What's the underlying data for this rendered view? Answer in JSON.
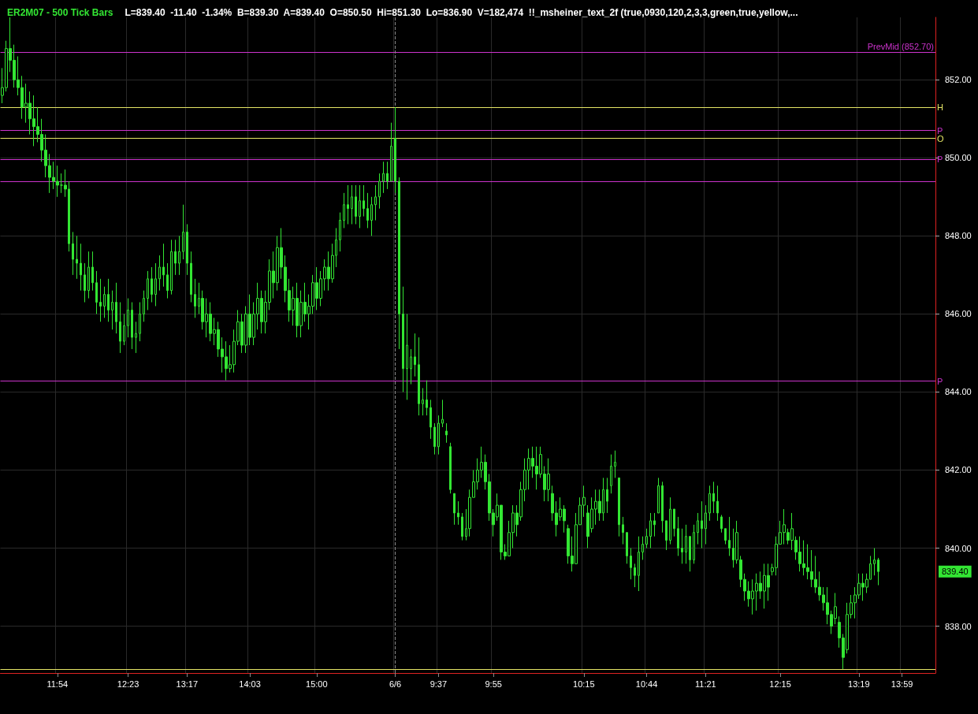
{
  "chart_data": {
    "type": "candlestick",
    "title": "ER2M07 - 500 Tick Bars",
    "subtitle": "L=839.40  -11.40  -1.34%  B=839.30  A=839.40  O=850.50  Hi=851.30  Lo=836.90  V=182,474  !!_msheiner_text_2f (true,0930,120,2,3,3,green,true,yellow,...",
    "color": "#33e633",
    "grid": true,
    "categories": [
      null,
      null,
      null,
      null,
      null,
      null,
      null,
      null,
      null,
      null,
      null,
      null,
      null,
      null,
      "11:54",
      null,
      null,
      null,
      null,
      null,
      null,
      null,
      null,
      null,
      null,
      null,
      null,
      null,
      null,
      null,
      null,
      null,
      "12:23",
      null,
      null,
      null,
      null,
      null,
      null,
      null,
      null,
      null,
      null,
      null,
      null,
      null,
      null,
      "13:17",
      null,
      null,
      null,
      null,
      null,
      null,
      null,
      null,
      null,
      null,
      null,
      null,
      null,
      null,
      null,
      "14:03",
      null,
      null,
      null,
      null,
      null,
      null,
      null,
      null,
      null,
      null,
      null,
      null,
      null,
      null,
      null,
      null,
      "15:00",
      null,
      null,
      null,
      null,
      null,
      null,
      null,
      null,
      null,
      null,
      null,
      null,
      null,
      null,
      null,
      null,
      null,
      null,
      null,
      "6/6",
      null,
      null,
      null,
      null,
      null,
      null,
      null,
      null,
      null,
      null,
      "9:37",
      null,
      null,
      null,
      null,
      null,
      null,
      null,
      null,
      null,
      null,
      null,
      null,
      null,
      "9:55",
      null,
      null,
      null,
      null,
      null,
      null,
      null,
      null,
      null,
      null,
      null,
      null,
      null,
      null,
      null,
      null,
      null,
      null,
      null,
      null,
      null,
      null,
      "10:15",
      null,
      null,
      null,
      null,
      null,
      null,
      null,
      null,
      null,
      null,
      null,
      null,
      null,
      null,
      null,
      "10:44",
      null,
      null,
      null,
      null,
      null,
      null,
      null,
      null,
      null,
      null,
      null,
      null,
      null,
      null,
      "11:21",
      null,
      null,
      null,
      null,
      null,
      null,
      null,
      null,
      null,
      null,
      null,
      null,
      null,
      null,
      null,
      null,
      null,
      null,
      "12:15",
      null,
      null,
      null,
      null,
      null,
      null,
      null,
      null,
      null,
      null,
      null,
      null,
      null,
      null,
      null,
      null,
      null,
      null,
      null,
      "13:19",
      null,
      null,
      null,
      null,
      null,
      null,
      null,
      null,
      null,
      null,
      "13:59",
      null,
      null,
      null,
      null,
      null,
      null,
      null,
      null
    ],
    "ohlc": [
      [
        851.6,
        852.3,
        851.4,
        851.8
      ],
      [
        851.8,
        853.0,
        851.7,
        852.8
      ],
      [
        852.8,
        853.6,
        852.2,
        852.5
      ],
      [
        852.5,
        852.9,
        851.8,
        852.0
      ],
      [
        852.0,
        852.6,
        851.6,
        851.8
      ],
      [
        851.8,
        852.1,
        851.0,
        851.3
      ],
      [
        851.3,
        851.9,
        850.9,
        851.4
      ],
      [
        851.4,
        851.7,
        850.6,
        851.0
      ],
      [
        851.0,
        851.6,
        850.3,
        850.8
      ],
      [
        850.8,
        851.3,
        850.4,
        850.6
      ],
      [
        850.6,
        851.0,
        849.9,
        850.2
      ],
      [
        850.2,
        850.6,
        849.5,
        849.8
      ],
      [
        849.8,
        850.1,
        849.1,
        849.5
      ],
      [
        849.5,
        849.9,
        849.2,
        849.4
      ],
      [
        849.4,
        849.8,
        849.0,
        849.3
      ],
      [
        849.3,
        849.6,
        849.1,
        849.3
      ],
      [
        849.3,
        849.7,
        849.0,
        849.2
      ],
      [
        849.2,
        849.4,
        847.6,
        847.8
      ],
      [
        847.8,
        848.1,
        847.0,
        847.4
      ],
      [
        847.4,
        848.0,
        846.9,
        847.3
      ],
      [
        847.3,
        847.8,
        846.6,
        847.0
      ],
      [
        847.0,
        847.3,
        846.3,
        846.6
      ],
      [
        846.6,
        847.6,
        846.4,
        847.2
      ],
      [
        847.2,
        847.6,
        846.6,
        846.8
      ],
      [
        846.8,
        847.1,
        846.0,
        846.3
      ],
      [
        846.3,
        846.9,
        845.8,
        846.2
      ],
      [
        846.2,
        846.7,
        845.9,
        846.5
      ],
      [
        846.5,
        846.9,
        845.8,
        846.1
      ],
      [
        846.1,
        846.6,
        845.6,
        846.3
      ],
      [
        846.3,
        846.8,
        845.5,
        845.8
      ],
      [
        845.8,
        846.3,
        845.0,
        845.3
      ],
      [
        845.3,
        846.0,
        845.2,
        845.7
      ],
      [
        845.7,
        846.4,
        845.4,
        846.1
      ],
      [
        846.1,
        846.3,
        845.1,
        845.4
      ],
      [
        845.4,
        845.8,
        845.0,
        845.5
      ],
      [
        845.5,
        846.3,
        845.3,
        846.0
      ],
      [
        846.0,
        846.6,
        845.8,
        846.4
      ],
      [
        846.4,
        847.1,
        846.1,
        846.9
      ],
      [
        846.9,
        847.2,
        846.3,
        846.5
      ],
      [
        846.5,
        847.3,
        846.2,
        846.9
      ],
      [
        846.9,
        847.5,
        846.6,
        847.2
      ],
      [
        847.2,
        847.8,
        846.7,
        847.0
      ],
      [
        847.0,
        847.3,
        846.4,
        846.6
      ],
      [
        846.6,
        847.9,
        846.5,
        847.6
      ],
      [
        847.6,
        847.9,
        847.0,
        847.3
      ],
      [
        847.3,
        848.0,
        847.0,
        847.6
      ],
      [
        847.6,
        848.8,
        847.4,
        848.1
      ],
      [
        848.1,
        848.3,
        847.0,
        847.3
      ],
      [
        847.3,
        847.6,
        846.3,
        846.5
      ],
      [
        846.5,
        846.9,
        845.9,
        846.2
      ],
      [
        846.2,
        846.8,
        846.0,
        846.4
      ],
      [
        846.4,
        846.6,
        845.6,
        845.8
      ],
      [
        845.8,
        846.4,
        845.4,
        846.0
      ],
      [
        846.0,
        846.3,
        845.3,
        845.5
      ],
      [
        845.5,
        845.9,
        845.2,
        845.6
      ],
      [
        845.6,
        845.8,
        844.9,
        845.1
      ],
      [
        845.1,
        845.4,
        844.5,
        844.9
      ],
      [
        844.9,
        845.3,
        844.3,
        844.6
      ],
      [
        844.6,
        845.2,
        844.5,
        844.7
      ],
      [
        844.7,
        845.6,
        844.5,
        845.3
      ],
      [
        845.3,
        846.1,
        845.2,
        845.8
      ],
      [
        845.8,
        846.0,
        845.0,
        845.2
      ],
      [
        845.2,
        846.2,
        845.0,
        846.0
      ],
      [
        846.0,
        846.5,
        845.2,
        845.4
      ],
      [
        845.4,
        846.3,
        845.2,
        846.0
      ],
      [
        846.0,
        846.8,
        845.6,
        846.4
      ],
      [
        846.4,
        846.6,
        845.5,
        845.8
      ],
      [
        845.8,
        846.6,
        845.5,
        846.3
      ],
      [
        846.3,
        847.4,
        846.1,
        847.1
      ],
      [
        847.1,
        847.6,
        846.4,
        846.8
      ],
      [
        846.8,
        848.0,
        846.6,
        847.7
      ],
      [
        847.7,
        848.2,
        846.9,
        847.2
      ],
      [
        847.2,
        847.5,
        846.3,
        846.6
      ],
      [
        846.6,
        846.9,
        845.8,
        846.1
      ],
      [
        846.1,
        846.7,
        845.7,
        846.4
      ],
      [
        846.4,
        846.8,
        845.4,
        845.7
      ],
      [
        845.7,
        846.6,
        845.4,
        846.3
      ],
      [
        846.3,
        846.8,
        845.8,
        846.0
      ],
      [
        846.0,
        846.5,
        845.6,
        846.2
      ],
      [
        846.2,
        847.0,
        846.0,
        846.8
      ],
      [
        846.8,
        847.2,
        846.1,
        846.4
      ],
      [
        846.4,
        847.1,
        846.2,
        846.9
      ],
      [
        846.9,
        847.4,
        846.6,
        847.2
      ],
      [
        847.2,
        847.6,
        846.6,
        846.9
      ],
      [
        846.9,
        847.8,
        846.8,
        847.5
      ],
      [
        847.5,
        848.2,
        847.2,
        847.9
      ],
      [
        847.9,
        848.6,
        847.6,
        848.4
      ],
      [
        848.4,
        849.1,
        848.2,
        848.8
      ],
      [
        848.8,
        849.3,
        848.3,
        848.7
      ],
      [
        848.7,
        849.3,
        848.3,
        849.0
      ],
      [
        849.0,
        849.3,
        848.3,
        848.5
      ],
      [
        848.5,
        849.3,
        848.2,
        848.9
      ],
      [
        848.9,
        849.3,
        848.5,
        848.7
      ],
      [
        848.7,
        849.1,
        848.2,
        848.4
      ],
      [
        848.4,
        849.0,
        848.0,
        848.8
      ],
      [
        848.8,
        849.3,
        848.4,
        849.0
      ],
      [
        849.0,
        849.6,
        848.7,
        849.4
      ],
      [
        849.4,
        849.9,
        849.1,
        849.6
      ],
      [
        849.6,
        849.9,
        849.2,
        849.4
      ],
      [
        849.4,
        850.9,
        849.4,
        850.3
      ],
      [
        850.5,
        851.3,
        849.1,
        849.4
      ],
      [
        849.4,
        849.5,
        845.1,
        846.0
      ],
      [
        846.0,
        846.7,
        844.0,
        844.6
      ],
      [
        844.6,
        846.0,
        843.8,
        845.2
      ],
      [
        844.6,
        845.1,
        844.2,
        844.9
      ],
      [
        844.9,
        845.5,
        844.4,
        844.7
      ],
      [
        844.7,
        845.4,
        843.4,
        843.7
      ],
      [
        843.7,
        844.1,
        843.4,
        843.8
      ],
      [
        843.8,
        844.3,
        843.4,
        843.6
      ],
      [
        843.6,
        843.8,
        842.8,
        843.1
      ],
      [
        843.1,
        843.2,
        842.4,
        842.6
      ],
      [
        842.6,
        843.4,
        842.4,
        843.2
      ],
      [
        843.2,
        843.8,
        843.1,
        843.3
      ],
      [
        843.0,
        843.2,
        842.7,
        842.9
      ],
      [
        842.6,
        842.7,
        841.4,
        841.5
      ],
      [
        841.4,
        841.4,
        840.6,
        840.9
      ],
      [
        840.9,
        841.2,
        840.6,
        840.8
      ],
      [
        840.8,
        840.9,
        840.2,
        840.3
      ],
      [
        840.3,
        841.0,
        840.2,
        840.5
      ],
      [
        840.5,
        841.5,
        840.3,
        841.3
      ],
      [
        841.3,
        842.0,
        841.3,
        841.7
      ],
      [
        841.7,
        842.3,
        841.5,
        842.0
      ],
      [
        842.0,
        842.6,
        841.8,
        842.2
      ],
      [
        842.2,
        842.4,
        841.5,
        841.7
      ],
      [
        841.7,
        841.9,
        840.7,
        840.9
      ],
      [
        840.9,
        841.0,
        840.3,
        840.6
      ],
      [
        840.8,
        841.4,
        840.7,
        841.1
      ],
      [
        841.1,
        841.1,
        839.7,
        839.9
      ],
      [
        839.9,
        840.1,
        839.7,
        839.8
      ],
      [
        839.8,
        840.7,
        839.8,
        840.4
      ],
      [
        840.4,
        841.1,
        840.0,
        840.9
      ],
      [
        840.9,
        841.1,
        840.3,
        840.6
      ],
      [
        840.8,
        841.7,
        840.7,
        841.5
      ],
      [
        841.5,
        842.3,
        841.2,
        842.0
      ],
      [
        842.0,
        842.55,
        841.5,
        842.3
      ],
      [
        842.3,
        842.6,
        841.8,
        842.1
      ],
      [
        842.1,
        842.6,
        841.5,
        841.9
      ],
      [
        841.9,
        842.6,
        841.8,
        842.4
      ],
      [
        841.9,
        842.1,
        841.2,
        841.5
      ],
      [
        841.5,
        842.3,
        841.2,
        841.9
      ],
      [
        841.4,
        841.6,
        840.7,
        840.9
      ],
      [
        840.9,
        841.2,
        840.3,
        840.6
      ],
      [
        840.8,
        841.3,
        840.7,
        841.0
      ],
      [
        841.0,
        841.1,
        840.4,
        840.7
      ],
      [
        840.5,
        840.6,
        839.6,
        839.8
      ],
      [
        839.8,
        840.3,
        839.4,
        839.6
      ],
      [
        839.6,
        840.9,
        839.6,
        840.6
      ],
      [
        840.6,
        841.3,
        840.6,
        841.1
      ],
      [
        841.1,
        841.6,
        840.8,
        841.3
      ],
      [
        840.9,
        841.1,
        840.0,
        840.3
      ],
      [
        840.5,
        841.3,
        840.4,
        841.0
      ],
      [
        841.0,
        841.5,
        840.6,
        841.2
      ],
      [
        841.2,
        841.5,
        840.7,
        840.9
      ],
      [
        840.9,
        841.8,
        840.7,
        841.5
      ],
      [
        841.5,
        841.8,
        840.9,
        841.2
      ],
      [
        841.6,
        842.4,
        841.4,
        842.1
      ],
      [
        842.1,
        842.5,
        841.8,
        842.2
      ],
      [
        841.8,
        841.8,
        840.3,
        840.6
      ],
      [
        840.6,
        840.8,
        840.1,
        840.4
      ],
      [
        840.4,
        840.4,
        839.6,
        839.8
      ],
      [
        839.8,
        840.0,
        839.2,
        839.5
      ],
      [
        839.5,
        839.6,
        839.0,
        839.3
      ],
      [
        839.3,
        840.3,
        838.9,
        839.9
      ],
      [
        839.9,
        840.3,
        839.7,
        840.1
      ],
      [
        840.1,
        840.5,
        840.0,
        840.3
      ],
      [
        840.3,
        840.9,
        840.0,
        840.7
      ],
      [
        840.7,
        840.9,
        840.3,
        840.6
      ],
      [
        840.9,
        841.8,
        840.9,
        841.6
      ],
      [
        841.6,
        841.7,
        840.4,
        840.7
      ],
      [
        840.7,
        840.7,
        839.95,
        840.2
      ],
      [
        840.2,
        841.3,
        840.1,
        841.0
      ],
      [
        841.0,
        841.0,
        840.3,
        840.5
      ],
      [
        840.5,
        840.8,
        839.8,
        840.0
      ],
      [
        840.0,
        840.5,
        839.6,
        839.9
      ],
      [
        839.9,
        840.6,
        839.6,
        840.3
      ],
      [
        840.3,
        840.3,
        839.4,
        839.7
      ],
      [
        839.7,
        840.6,
        839.6,
        840.4
      ],
      [
        840.4,
        840.9,
        840.1,
        840.7
      ],
      [
        840.7,
        841.2,
        840.0,
        840.5
      ],
      [
        840.5,
        841.1,
        840.1,
        840.9
      ],
      [
        840.9,
        841.6,
        840.7,
        841.4
      ],
      [
        841.4,
        841.7,
        840.9,
        841.2
      ],
      [
        841.2,
        841.6,
        840.7,
        840.9
      ],
      [
        840.8,
        840.85,
        840.4,
        840.5
      ],
      [
        840.5,
        840.5,
        840.1,
        840.2
      ],
      [
        840.2,
        840.8,
        839.8,
        840.0
      ],
      [
        840.0,
        840.5,
        839.5,
        839.7
      ],
      [
        839.7,
        840.7,
        839.6,
        840.4
      ],
      [
        839.7,
        839.8,
        839.0,
        839.2
      ],
      [
        839.2,
        839.35,
        838.65,
        838.9
      ],
      [
        838.9,
        839.15,
        838.5,
        838.7
      ],
      [
        838.7,
        839.2,
        838.3,
        838.9
      ],
      [
        838.9,
        839.35,
        838.4,
        839.1
      ],
      [
        839.1,
        839.4,
        838.7,
        838.9
      ],
      [
        838.9,
        839.6,
        838.45,
        839.3
      ],
      [
        839.3,
        839.6,
        838.65,
        839.0
      ],
      [
        839.4,
        839.6,
        839.3,
        839.5
      ],
      [
        839.5,
        840.3,
        839.3,
        840.1
      ],
      [
        840.1,
        840.7,
        840.1,
        840.4
      ],
      [
        840.4,
        841.0,
        840.1,
        840.6
      ],
      [
        840.4,
        840.5,
        840.1,
        840.2
      ],
      [
        840.2,
        840.9,
        839.95,
        840.5
      ],
      [
        840.2,
        840.3,
        839.7,
        839.9
      ],
      [
        839.9,
        840.3,
        839.4,
        839.6
      ],
      [
        839.6,
        840.2,
        839.3,
        839.5
      ],
      [
        839.5,
        840.1,
        839.2,
        839.4
      ],
      [
        839.4,
        839.95,
        839.0,
        839.2
      ],
      [
        839.2,
        839.8,
        838.85,
        839.0
      ],
      [
        839.0,
        839.4,
        838.65,
        838.8
      ],
      [
        838.8,
        839.0,
        838.4,
        838.6
      ],
      [
        838.6,
        839.0,
        838.05,
        838.3
      ],
      [
        838.3,
        838.4,
        837.8,
        838.0
      ],
      [
        838.2,
        838.85,
        838.05,
        838.5
      ],
      [
        838.1,
        838.25,
        837.45,
        837.7
      ],
      [
        837.7,
        837.8,
        836.9,
        837.2
      ],
      [
        837.4,
        838.6,
        837.3,
        838.3
      ],
      [
        838.3,
        838.8,
        838.2,
        838.6
      ],
      [
        838.6,
        839.0,
        838.2,
        838.8
      ],
      [
        838.8,
        839.35,
        838.7,
        839.1
      ],
      [
        839.1,
        839.35,
        838.65,
        839.0
      ],
      [
        839.0,
        839.35,
        838.85,
        839.2
      ],
      [
        839.2,
        839.8,
        839.2,
        839.6
      ],
      [
        839.6,
        840.0,
        839.3,
        839.7
      ],
      [
        839.7,
        839.75,
        839.05,
        839.4
      ],
      null,
      null,
      null,
      null,
      null,
      null,
      null,
      null,
      null,
      null,
      null,
      null,
      null,
      null
    ],
    "ylim": [
      836.8,
      853.6
    ],
    "yticks": [
      {
        "value": 838,
        "label": "838.00"
      },
      {
        "value": 840,
        "label": "840.00"
      },
      {
        "value": 842,
        "label": "842.00"
      },
      {
        "value": 844,
        "label": "844.00"
      },
      {
        "value": 846,
        "label": "846.00"
      },
      {
        "value": 848,
        "label": "848.00"
      },
      {
        "value": 850,
        "label": "850.00"
      },
      {
        "value": 852,
        "label": "852.00"
      }
    ],
    "ref_lines": [
      {
        "axis": "y",
        "value": 852.7,
        "label": "PrevMid (852.70)",
        "color": "#cc33cc"
      },
      {
        "axis": "y",
        "value": 849.4,
        "color": "#cc33cc"
      },
      {
        "axis": "y",
        "value": 851.3,
        "label": "H",
        "color": "#e6e666"
      },
      {
        "axis": "y",
        "value": 850.7,
        "label": "P",
        "color": "#cc33cc"
      },
      {
        "axis": "y",
        "value": 850.5,
        "label": "O",
        "color": "#e6e666"
      },
      {
        "axis": "y",
        "value": 849.97,
        "label": "P",
        "color": "#cc33cc"
      },
      {
        "axis": "y",
        "value": 844.28,
        "label": "P",
        "color": "#cc33cc"
      },
      {
        "axis": "y",
        "value": 836.9,
        "color": "#e6e666"
      },
      {
        "axis": "x",
        "value": "6/6",
        "color": "#888888",
        "line_style": "dashed"
      }
    ],
    "annotations": [
      "839.40"
    ]
  }
}
